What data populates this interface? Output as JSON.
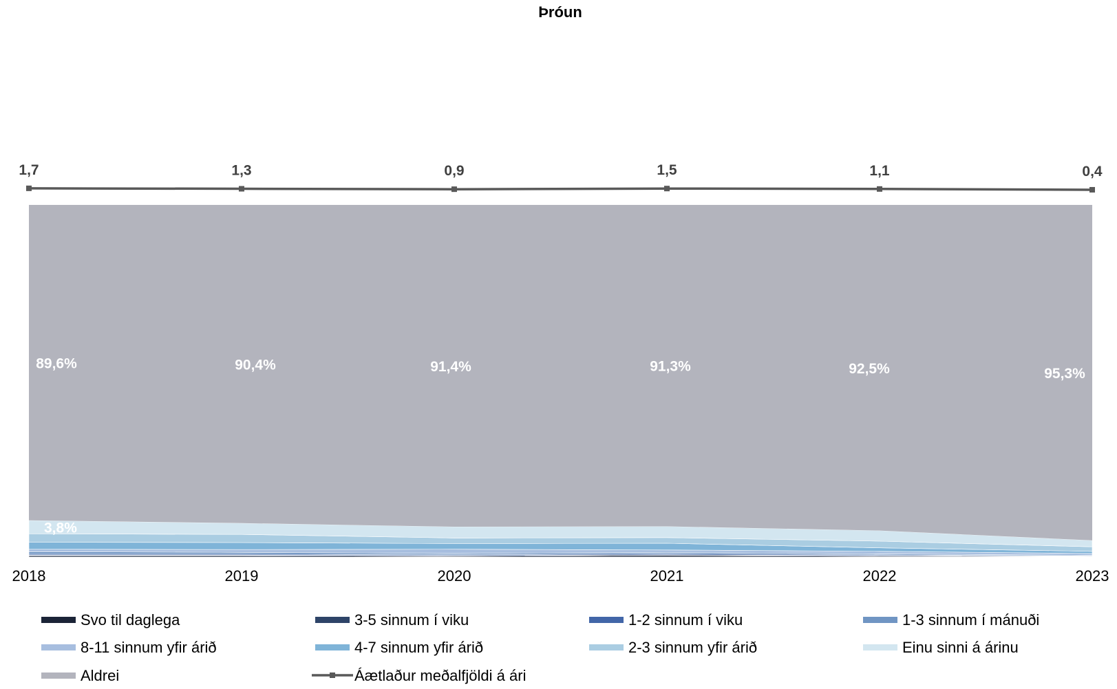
{
  "chart_data": {
    "type": "area",
    "stacked": true,
    "percent_stacked": true,
    "title": "Þróun",
    "xlabel": "",
    "ylabel": "",
    "categories": [
      "2018",
      "2019",
      "2020",
      "2021",
      "2022",
      "2023"
    ],
    "ylim": [
      0,
      100
    ],
    "grid": false,
    "legend_position": "bottom",
    "series": [
      {
        "name": "Svo til daglega",
        "color": "#1b2437",
        "values": [
          0.3,
          0.3,
          0.2,
          0.4,
          0.2,
          0.1
        ]
      },
      {
        "name": "3-5 sinnum í viku",
        "color": "#2e4468",
        "values": [
          0.2,
          0.2,
          0.2,
          0.2,
          0.2,
          0.1
        ]
      },
      {
        "name": "1-2 sinnum í viku",
        "color": "#4266a8",
        "values": [
          0.3,
          0.3,
          0.2,
          0.3,
          0.2,
          0.1
        ]
      },
      {
        "name": "1-3 sinnum í mánuði",
        "color": "#7095c3",
        "values": [
          0.7,
          0.5,
          0.4,
          0.4,
          0.3,
          0.2
        ]
      },
      {
        "name": "8-11 sinnum yfir árið",
        "color": "#a7bedf",
        "values": [
          0.7,
          0.8,
          1.2,
          0.7,
          0.7,
          0.5
        ]
      },
      {
        "name": "4-7 sinnum yfir árið",
        "color": "#7fb4d8",
        "values": [
          2.0,
          2.0,
          1.6,
          1.9,
          1.0,
          0.6
        ]
      },
      {
        "name": "2-3 sinnum yfir árið",
        "color": "#aacde2",
        "values": [
          2.4,
          2.3,
          1.6,
          1.6,
          1.9,
          1.3
        ]
      },
      {
        "name": "Einu sinni á árinu",
        "color": "#d3e6f0",
        "values": [
          3.8,
          3.2,
          3.2,
          3.2,
          3.0,
          1.8
        ]
      },
      {
        "name": "Aldrei",
        "color": "#b3b4bd",
        "values": [
          89.6,
          90.4,
          91.4,
          91.3,
          92.5,
          95.3
        ]
      }
    ],
    "data_labels": [
      {
        "series": "Einu sinni á árinu",
        "category": "2018",
        "text": "3,8%"
      },
      {
        "series": "Aldrei",
        "category": "2018",
        "text": "89,6%"
      },
      {
        "series": "Aldrei",
        "category": "2019",
        "text": "90,4%"
      },
      {
        "series": "Aldrei",
        "category": "2020",
        "text": "91,4%"
      },
      {
        "series": "Aldrei",
        "category": "2021",
        "text": "91,3%"
      },
      {
        "series": "Aldrei",
        "category": "2022",
        "text": "92,5%"
      },
      {
        "series": "Aldrei",
        "category": "2023",
        "text": "95,3%"
      }
    ],
    "line_series": {
      "name": "Áætlaður meðalfjöldi á ári",
      "color": "#595959",
      "values": [
        1.7,
        1.3,
        0.9,
        1.5,
        1.1,
        0.4
      ],
      "labels": [
        "1,7",
        "1,3",
        "0,9",
        "1,5",
        "1,1",
        "0,4"
      ]
    }
  }
}
